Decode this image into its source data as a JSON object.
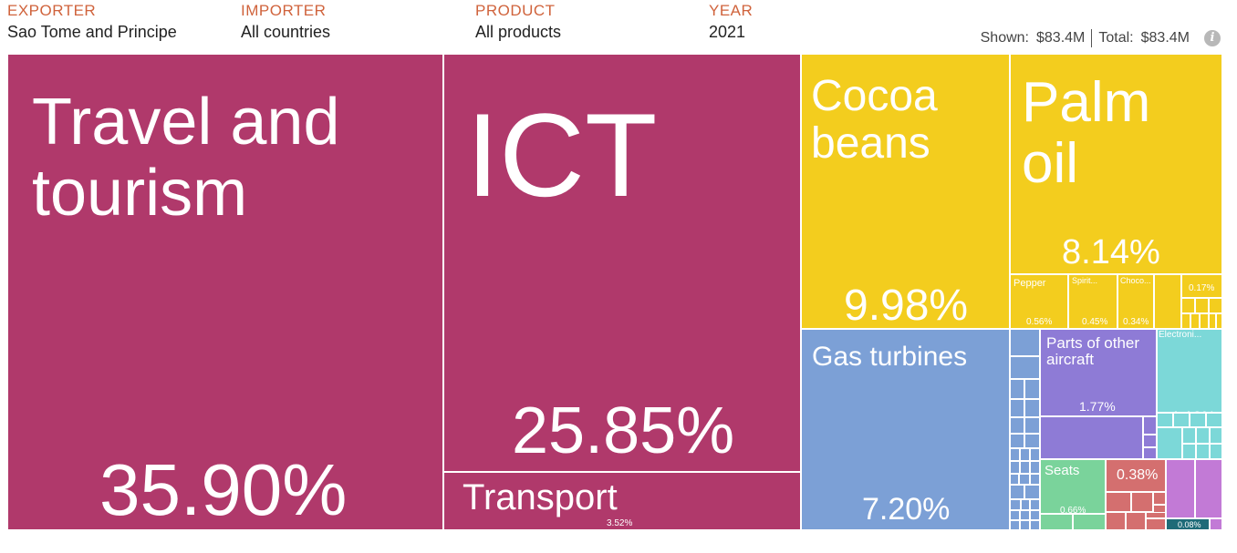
{
  "filters": {
    "exporter": {
      "label": "EXPORTER",
      "value": "Sao Tome and Principe"
    },
    "importer": {
      "label": "IMPORTER",
      "value": "All countries"
    },
    "product": {
      "label": "PRODUCT",
      "value": "All products"
    },
    "year": {
      "label": "YEAR",
      "value": "2021"
    }
  },
  "totals": {
    "shown_label": "Shown:",
    "shown_value": "$83.4M",
    "total_label": "Total:",
    "total_value": "$83.4M"
  },
  "icons": {
    "info": "info-icon"
  },
  "colors": {
    "services": "#b0396b",
    "agriculture": "#f3cd1e",
    "machinery": "#7ca0d6",
    "aircraft": "#8e7bd6",
    "electronics": "#7cd8d8",
    "textiles": "#7ad39b",
    "metals": "#d46f6f",
    "chemicals": "#c27ad6",
    "other": "#1f6b78"
  },
  "chart_data": {
    "type": "treemap",
    "title": "",
    "items": [
      {
        "label": "Travel and tourism",
        "share": 35.9,
        "share_text": "35.90%",
        "group": "services"
      },
      {
        "label": "ICT",
        "share": 25.85,
        "share_text": "25.85%",
        "group": "services"
      },
      {
        "label": "Transport",
        "share": 3.52,
        "share_text": "3.52%",
        "group": "services"
      },
      {
        "label": "Cocoa beans",
        "share": 9.98,
        "share_text": "9.98%",
        "group": "agriculture"
      },
      {
        "label": "Palm oil",
        "share": 8.14,
        "share_text": "8.14%",
        "group": "agriculture"
      },
      {
        "label": "Pepper",
        "share": 0.56,
        "share_text": "0.56%",
        "group": "agriculture"
      },
      {
        "label": "Spirit...",
        "share": 0.45,
        "share_text": "0.45%",
        "group": "agriculture"
      },
      {
        "label": "Choco...",
        "share": 0.34,
        "share_text": "0.34%",
        "group": "agriculture"
      },
      {
        "label": "",
        "share": 0.17,
        "share_text": "0.17%",
        "group": "agriculture"
      },
      {
        "label": "Gas turbines",
        "share": 7.2,
        "share_text": "7.20%",
        "group": "machinery"
      },
      {
        "label": "Parts of other aircraft",
        "share": 1.77,
        "share_text": "1.77%",
        "group": "aircraft"
      },
      {
        "label": "Electroni...",
        "share": 1.1,
        "share_text": "1.10%",
        "group": "electronics"
      },
      {
        "label": "Seats",
        "share": 0.66,
        "share_text": "0.66%",
        "group": "textiles"
      },
      {
        "label": "",
        "share": 0.38,
        "share_text": "0.38%",
        "group": "metals"
      },
      {
        "label": "",
        "share": 0.08,
        "share_text": "0.08%",
        "group": "other"
      }
    ]
  }
}
